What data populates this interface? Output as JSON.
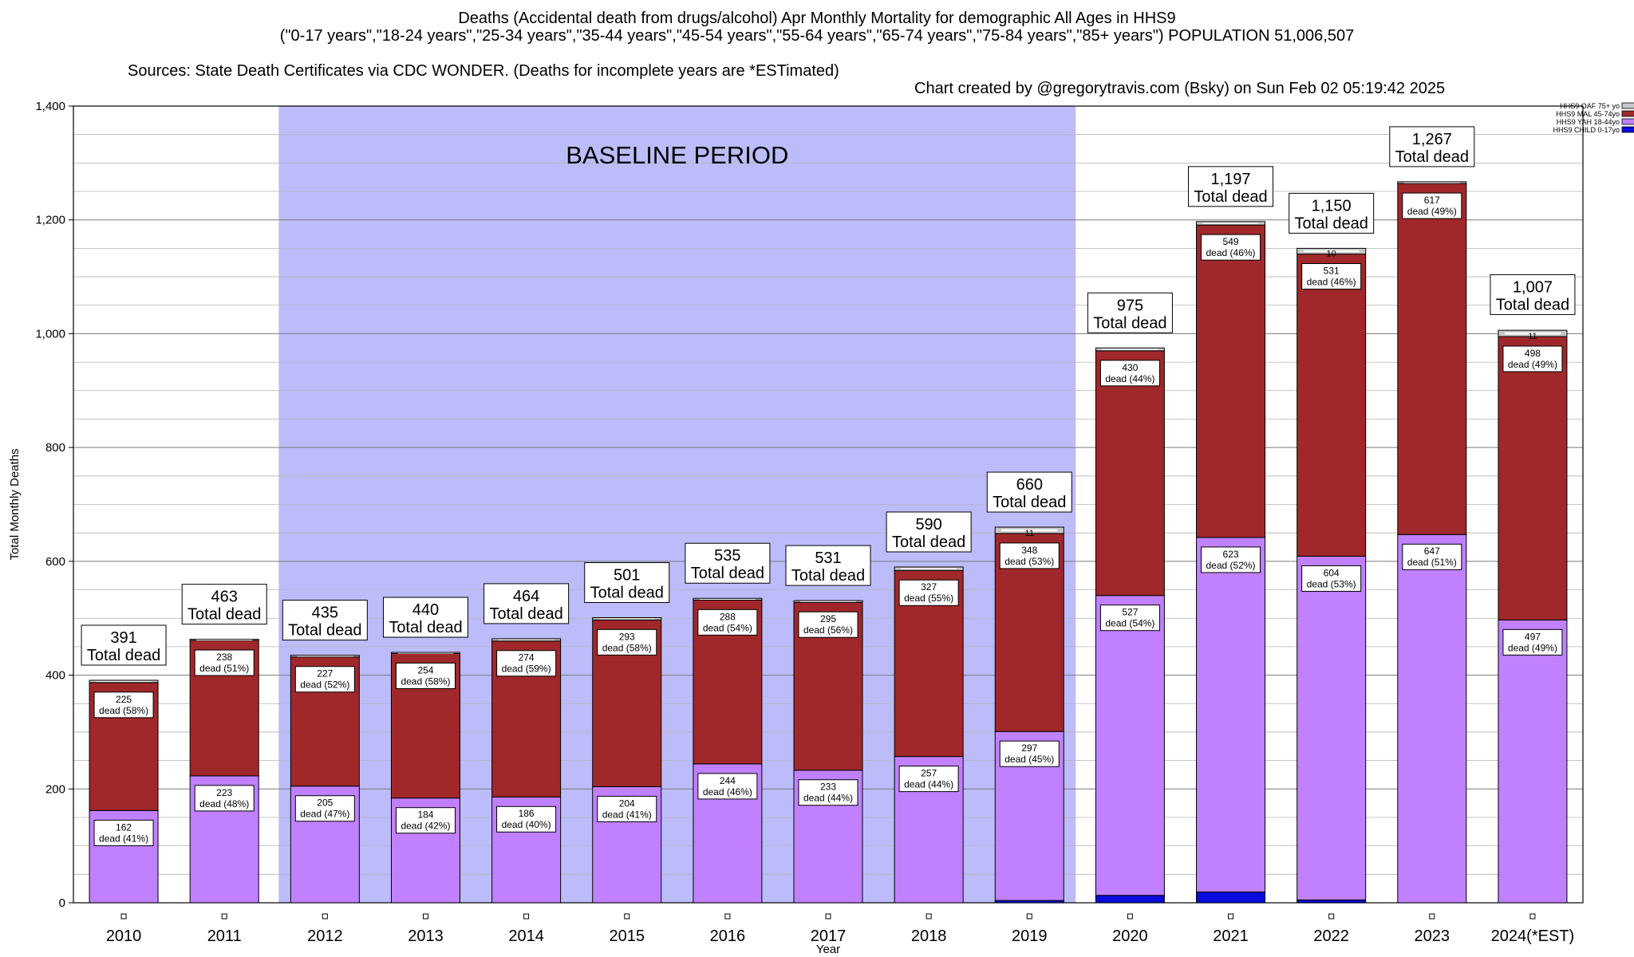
{
  "header": {
    "title_line1": "Deaths (Accidental death from drugs/alcohol) Apr Monthly Mortality for demographic All Ages in HHS9",
    "title_line2": "(\"0-17 years\",\"18-24 years\",\"25-34 years\",\"35-44 years\",\"45-54 years\",\"55-64 years\",\"65-74 years\",\"75-84 years\",\"85+ years\") POPULATION 51,006,507",
    "sources": "Sources: State Death Certificates via CDC WONDER. (Deaths for incomplete years are *ESTimated)",
    "credit": "Chart created by @gregorytravis.com (Bsky) on Sun Feb 02 05:19:42 2025"
  },
  "chart_data": {
    "type": "bar",
    "stacked": true,
    "ylabel": "Total Monthly Deaths",
    "xlabel": "Year",
    "ylim": [
      0,
      1400
    ],
    "yticks": [
      0,
      200,
      400,
      600,
      800,
      1000,
      1200,
      1400
    ],
    "ytick_labels": [
      "0",
      "200",
      "400",
      "600",
      "800",
      "1,000",
      "1,200",
      "1,400"
    ],
    "grid": true,
    "legend_position": "top-right",
    "categories": [
      "2010",
      "2011",
      "2012",
      "2013",
      "2014",
      "2015",
      "2016",
      "2017",
      "2018",
      "2019",
      "2020",
      "2021",
      "2022",
      "2023",
      "2024(*EST)"
    ],
    "series": [
      {
        "name": "HHS9 CHILD 0-17yo",
        "color": "#0a0adc",
        "values": [
          0,
          0,
          0,
          0,
          0,
          0,
          0,
          0,
          0,
          4,
          13,
          19,
          5,
          0,
          0
        ]
      },
      {
        "name": "HHS9 YAH 18-44yo",
        "color": "#c080ff",
        "values": [
          162,
          223,
          205,
          184,
          186,
          204,
          244,
          233,
          257,
          297,
          527,
          623,
          604,
          647,
          497
        ]
      },
      {
        "name": "HHS9 MAL 45-74yo",
        "color": "#a0282a",
        "values": [
          225,
          238,
          227,
          254,
          274,
          293,
          288,
          295,
          327,
          348,
          430,
          549,
          531,
          617,
          498
        ]
      },
      {
        "name": "HHS9 OAF 75+ yo",
        "color": "#c8c8c8",
        "values": [
          4,
          2,
          3,
          2,
          4,
          4,
          3,
          3,
          6,
          11,
          5,
          6,
          10,
          3,
          11
        ]
      }
    ],
    "totals": [
      391,
      463,
      435,
      440,
      464,
      501,
      535,
      531,
      590,
      660,
      975,
      1197,
      1150,
      1267,
      1007
    ],
    "total_labels": [
      "391",
      "463",
      "435",
      "440",
      "464",
      "501",
      "535",
      "531",
      "590",
      "660",
      "975",
      "1,197",
      "1,150",
      "1,267",
      "1,007"
    ],
    "total_suffix": "Total dead",
    "yah_labels": [
      [
        "162",
        "dead (41%)"
      ],
      [
        "223",
        "dead (48%)"
      ],
      [
        "205",
        "dead (47%)"
      ],
      [
        "184",
        "dead (42%)"
      ],
      [
        "186",
        "dead (40%)"
      ],
      [
        "204",
        "dead (41%)"
      ],
      [
        "244",
        "dead (46%)"
      ],
      [
        "233",
        "dead (44%)"
      ],
      [
        "257",
        "dead (44%)"
      ],
      [
        "297",
        "dead (45%)"
      ],
      [
        "527",
        "dead (54%)"
      ],
      [
        "623",
        "dead (52%)"
      ],
      [
        "604",
        "dead (53%)"
      ],
      [
        "647",
        "dead (51%)"
      ],
      [
        "497",
        "dead (49%)"
      ]
    ],
    "mal_labels": [
      [
        "225",
        "dead (58%)"
      ],
      [
        "238",
        "dead (51%)"
      ],
      [
        "227",
        "dead (52%)"
      ],
      [
        "254",
        "dead (58%)"
      ],
      [
        "274",
        "dead (59%)"
      ],
      [
        "293",
        "dead (58%)"
      ],
      [
        "288",
        "dead (54%)"
      ],
      [
        "295",
        "dead (56%)"
      ],
      [
        "327",
        "dead (55%)"
      ],
      [
        "348",
        "dead (53%)"
      ],
      [
        "430",
        "dead (44%)"
      ],
      [
        "549",
        "dead (46%)"
      ],
      [
        "531",
        "dead (46%)"
      ],
      [
        "617",
        "dead (49%)"
      ],
      [
        "498",
        "dead (49%)"
      ]
    ],
    "oaf_labels": [
      "",
      "",
      "",
      "",
      "",
      "",
      "",
      "",
      "",
      "11",
      "",
      "",
      "10",
      "",
      "11"
    ],
    "baseline": {
      "label": "BASELINE PERIOD",
      "from": "2012",
      "to": "2019",
      "color": "#bcbcfa"
    }
  }
}
